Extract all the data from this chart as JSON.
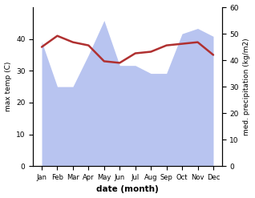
{
  "months": [
    "Jan",
    "Feb",
    "Mar",
    "Apr",
    "May",
    "Jun",
    "Jul",
    "Aug",
    "Sep",
    "Oct",
    "Nov",
    "Dec"
  ],
  "temperature": [
    37.5,
    41.0,
    39.0,
    38.0,
    33.0,
    32.5,
    35.5,
    36.0,
    38.0,
    38.5,
    39.0,
    35.0
  ],
  "precipitation": [
    47,
    30,
    30,
    42,
    55,
    38,
    38,
    35,
    35,
    50,
    52,
    49
  ],
  "temp_color": "#b03030",
  "precip_fill_color": "#b8c4f0",
  "xlabel": "date (month)",
  "ylabel_left": "max temp (C)",
  "ylabel_right": "med. precipitation (kg/m2)",
  "ylim_left": [
    0,
    50
  ],
  "ylim_right": [
    0,
    60
  ],
  "yticks_left": [
    0,
    10,
    20,
    30,
    40
  ],
  "yticks_right": [
    0,
    10,
    20,
    30,
    40,
    50,
    60
  ]
}
